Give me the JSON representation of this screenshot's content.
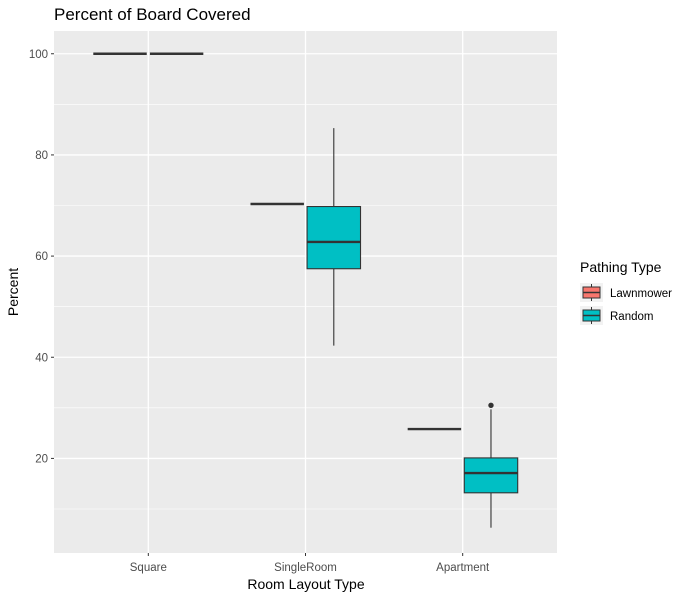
{
  "chart_data": {
    "type": "boxplot",
    "title": "Percent of Board Covered",
    "xlabel": "Room Layout Type",
    "ylabel": "Percent",
    "categories": [
      "Square",
      "SingleRoom",
      "Apartment"
    ],
    "yticks": [
      20,
      40,
      60,
      80,
      100
    ],
    "ylim": [
      1.3,
      104.5
    ],
    "grid": true,
    "legend": {
      "title": "Pathing Type",
      "position": "right",
      "entries": [
        {
          "name": "Lawnmower",
          "color": "#f8766d"
        },
        {
          "name": "Random",
          "color": "#00bfc4"
        }
      ]
    },
    "series": [
      {
        "name": "Lawnmower",
        "color": "#f8766d",
        "boxes": [
          {
            "category": "Square",
            "min": 100,
            "q1": 100,
            "median": 100,
            "q3": 100,
            "max": 100,
            "outliers": []
          },
          {
            "category": "SingleRoom",
            "min": 70.3,
            "q1": 70.3,
            "median": 70.3,
            "q3": 70.3,
            "max": 70.3,
            "outliers": []
          },
          {
            "category": "Apartment",
            "min": 25.8,
            "q1": 25.8,
            "median": 25.8,
            "q3": 25.8,
            "max": 25.8,
            "outliers": []
          }
        ]
      },
      {
        "name": "Random",
        "color": "#00bfc4",
        "boxes": [
          {
            "category": "Square",
            "min": 100,
            "q1": 100,
            "median": 100,
            "q3": 100,
            "max": 100,
            "outliers": []
          },
          {
            "category": "SingleRoom",
            "min": 42.3,
            "q1": 57.5,
            "median": 62.8,
            "q3": 69.8,
            "max": 85.3,
            "outliers": []
          },
          {
            "category": "Apartment",
            "min": 6.3,
            "q1": 13.2,
            "median": 17.1,
            "q3": 20.1,
            "max": 29.7,
            "outliers": [
              30.5
            ]
          }
        ]
      }
    ]
  }
}
